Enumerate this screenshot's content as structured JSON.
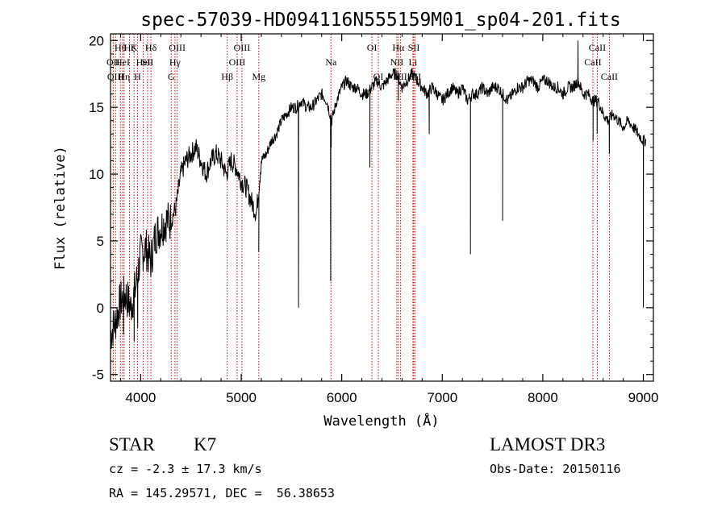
{
  "chart_data": {
    "type": "line",
    "title": "spec-57039-HD094116N555159M01_sp04-201.fits",
    "xlabel": "Wavelength (Å)",
    "ylabel": "Flux (relative)",
    "xlim": [
      3700,
      9100
    ],
    "ylim": [
      -5.5,
      20.5
    ],
    "xticks": [
      4000,
      5000,
      6000,
      7000,
      8000,
      9000
    ],
    "yticks": [
      -5,
      0,
      5,
      10,
      15,
      20
    ],
    "series": [
      {
        "name": "spectrum",
        "x": [
          3700,
          3750,
          3800,
          3850,
          3900,
          3950,
          4000,
          4050,
          4100,
          4150,
          4200,
          4250,
          4300,
          4350,
          4400,
          4450,
          4500,
          4550,
          4600,
          4650,
          4700,
          4750,
          4800,
          4850,
          4900,
          4950,
          5000,
          5050,
          5100,
          5150,
          5200,
          5250,
          5300,
          5350,
          5400,
          5450,
          5500,
          5550,
          5600,
          5650,
          5700,
          5750,
          5800,
          5850,
          5900,
          5950,
          6000,
          6050,
          6100,
          6150,
          6200,
          6250,
          6300,
          6350,
          6400,
          6450,
          6500,
          6550,
          6600,
          6650,
          6700,
          6750,
          6800,
          6850,
          6900,
          6950,
          7000,
          7050,
          7100,
          7150,
          7200,
          7250,
          7300,
          7350,
          7400,
          7450,
          7500,
          7550,
          7600,
          7650,
          7700,
          7750,
          7800,
          7850,
          7900,
          7950,
          8000,
          8050,
          8100,
          8150,
          8200,
          8250,
          8300,
          8350,
          8400,
          8450,
          8500,
          8550,
          8600,
          8650,
          8700,
          8750,
          8800,
          8850,
          8900,
          8950,
          9000
        ],
        "y": [
          -2.0,
          -1.0,
          0.5,
          1.0,
          0.0,
          1.5,
          4.0,
          4.5,
          3.5,
          5.5,
          6.0,
          6.5,
          6.5,
          7.5,
          10.0,
          11.0,
          11.5,
          12.0,
          11.0,
          10.0,
          11.0,
          11.5,
          11.0,
          10.0,
          11.0,
          10.5,
          9.5,
          9.0,
          8.0,
          7.0,
          11.0,
          11.5,
          12.5,
          13.0,
          14.0,
          14.5,
          15.0,
          15.0,
          15.5,
          15.0,
          15.0,
          15.5,
          16.0,
          15.5,
          14.0,
          15.5,
          16.5,
          17.0,
          16.5,
          16.5,
          16.0,
          16.0,
          16.5,
          17.0,
          16.5,
          17.0,
          17.5,
          17.5,
          16.5,
          17.0,
          17.5,
          17.0,
          16.5,
          16.0,
          16.5,
          16.0,
          15.5,
          16.0,
          16.5,
          16.0,
          16.5,
          15.5,
          16.0,
          16.0,
          16.5,
          16.0,
          16.5,
          16.5,
          16.0,
          15.5,
          16.0,
          16.5,
          16.5,
          17.0,
          17.0,
          16.5,
          17.0,
          17.0,
          16.5,
          16.5,
          16.0,
          16.5,
          16.5,
          17.0,
          16.0,
          16.0,
          15.5,
          15.5,
          14.5,
          14.0,
          14.5,
          14.0,
          13.5,
          14.0,
          13.5,
          13.0,
          12.5
        ]
      }
    ],
    "absorption_dips": [
      {
        "x": 3830,
        "y": -2.0
      },
      {
        "x": 3935,
        "y": -2.5
      },
      {
        "x": 3970,
        "y": -1.5
      },
      {
        "x": 4100,
        "y": 3.0
      },
      {
        "x": 5175,
        "y": 4.2
      },
      {
        "x": 5570,
        "y": 0.0
      },
      {
        "x": 5890,
        "y": 2.0
      },
      {
        "x": 5895,
        "y": 12.0
      },
      {
        "x": 6280,
        "y": 10.5
      },
      {
        "x": 6563,
        "y": 15.5
      },
      {
        "x": 6870,
        "y": 13.0
      },
      {
        "x": 7280,
        "y": 4.0
      },
      {
        "x": 7600,
        "y": 6.5
      },
      {
        "x": 8500,
        "y": 12.5
      },
      {
        "x": 8540,
        "y": 13.0
      },
      {
        "x": 8662,
        "y": 11.5
      },
      {
        "x": 9000,
        "y": 0.0
      }
    ],
    "spikes": [
      {
        "x": 8350,
        "y": 20.0
      }
    ],
    "line_markers": [
      {
        "x": 3727,
        "label": "OII",
        "row": 1
      },
      {
        "x": 3750,
        "label": "OIII",
        "row": 2
      },
      {
        "x": 3798,
        "label": "Hθ",
        "row": 0
      },
      {
        "x": 3820,
        "label": "HeI",
        "row": 1
      },
      {
        "x": 3835,
        "label": "Hη",
        "row": 2
      },
      {
        "x": 3889,
        "label": "Hζ",
        "row": 0
      },
      {
        "x": 3934,
        "label": "K",
        "row": 0
      },
      {
        "x": 3968,
        "label": "H",
        "row": 2
      },
      {
        "x": 4026,
        "label": "HeI",
        "row": 1
      },
      {
        "x": 4069,
        "label": "SII",
        "row": 1
      },
      {
        "x": 4102,
        "label": "Hδ",
        "row": 0
      },
      {
        "x": 4304,
        "label": "G",
        "row": 2
      },
      {
        "x": 4341,
        "label": "Hγ",
        "row": 1
      },
      {
        "x": 4363,
        "label": "OIII",
        "row": 0
      },
      {
        "x": 4861,
        "label": "Hβ",
        "row": 2
      },
      {
        "x": 4959,
        "label": "OIII",
        "row": 1
      },
      {
        "x": 5007,
        "label": "OIII",
        "row": 0
      },
      {
        "x": 5175,
        "label": "Mg",
        "row": 2
      },
      {
        "x": 5893,
        "label": "Na",
        "row": 1
      },
      {
        "x": 6300,
        "label": "OI",
        "row": 0
      },
      {
        "x": 6364,
        "label": "OI",
        "row": 2
      },
      {
        "x": 6548,
        "label": "NII",
        "row": 1
      },
      {
        "x": 6563,
        "label": "Hα",
        "row": 0
      },
      {
        "x": 6584,
        "label": "NII",
        "row": 2
      },
      {
        "x": 6708,
        "label": "Li",
        "row": 1
      },
      {
        "x": 6717,
        "label": "SII",
        "row": 0
      },
      {
        "x": 6731,
        "label": "SII",
        "row": 2
      },
      {
        "x": 8498,
        "label": "CaII",
        "row": 1
      },
      {
        "x": 8542,
        "label": "CaII",
        "row": 0
      },
      {
        "x": 8662,
        "label": "CaII",
        "row": 2
      }
    ]
  },
  "info": {
    "class": "STAR",
    "subclass": "K7",
    "survey": "LAMOST DR3",
    "redshift_line": "cz = -2.3 ± 17.3 km/s",
    "coords_line": "RA = 145.29571, DEC =  56.38653",
    "obs_date_line": "Obs-Date: 20150116"
  },
  "colors": {
    "spectrum": "#000000",
    "marker_line": "#cc0000",
    "axes": "#000000"
  }
}
